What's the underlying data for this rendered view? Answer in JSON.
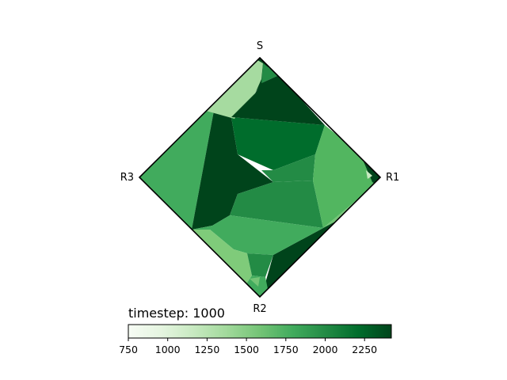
{
  "chart_data": {
    "type": "heatmap",
    "title": "",
    "vertex_labels": {
      "top": "S",
      "right": "R1",
      "bottom": "R2",
      "left": "R3"
    },
    "annotation": {
      "prefix": "timestep: ",
      "value": "1000"
    },
    "colormap": "Greens",
    "colorbar": {
      "range": [
        750,
        2420
      ],
      "ticks": [
        750,
        1000,
        1250,
        1500,
        1750,
        2000,
        2250
      ],
      "tick_labels": [
        "750",
        "1000",
        "1250",
        "1500",
        "1750",
        "2000",
        "2250"
      ]
    },
    "colors": {
      "border": "#000000",
      "frame": "#000000"
    }
  }
}
